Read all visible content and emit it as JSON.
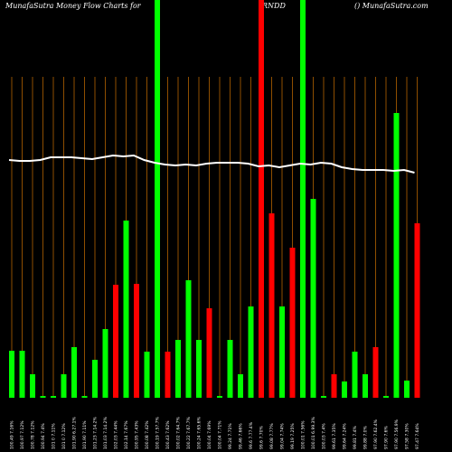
{
  "chart_data": {
    "type": "bar",
    "title": "MunafaSutra  Money Flow  Charts for",
    "symbol": "RNDD",
    "site": "() MunafaSutra.com",
    "categories": [
      "100.49 7.16%",
      "100.97 7.12%",
      "100.78 7.12%",
      "100.94 7.4%",
      "101 0 7.11%",
      "101 0 7.12%",
      "101.90 6.27.1%",
      "101.90 7.11%",
      "101.23 7.14.2%",
      "101.03 7.14.2%",
      "102.03 7.44%",
      "102.14 7.67%",
      "100.95 7.43%",
      "100.08 7.42%",
      "100.19 7.57.7%",
      "100.43 7.62%",
      "100.02 7.64.7%",
      "100.22 7.67.7%",
      "100.24 7.65.6%",
      "100.04 7.69%",
      "100.04 7.71%",
      "99.24 7.71%",
      "99.46 7.66%",
      "99.6 7.77.4%",
      "99.6 7.70%",
      "99.08 7.77%",
      "99.04 7.74%",
      "99.19 7.25%",
      "100.01 7.56%",
      "100.01 6.99.3%",
      "100.03 7.4%",
      "99.61 7.35%",
      "99.64 7.24%",
      "99.81 7.4%",
      "99.88 7.0%",
      "97.90 7.62.4%",
      "97.90 7.6%",
      "97.90 7.56.9%",
      "97.58 7.30%",
      "97.47 7.64%"
    ],
    "values": [
      52,
      52,
      26,
      2,
      2,
      26,
      56,
      2,
      42,
      76,
      125,
      196,
      126,
      51,
      440,
      51,
      64,
      130,
      64,
      99,
      2,
      64,
      26,
      101,
      440,
      204,
      101,
      166,
      440,
      220,
      2,
      26,
      18,
      51,
      26,
      56,
      2,
      315,
      19,
      193
    ],
    "colors": [
      "g",
      "g",
      "g",
      "g",
      "g",
      "g",
      "g",
      "g",
      "g",
      "g",
      "r",
      "g",
      "r",
      "g",
      "g",
      "r",
      "g",
      "g",
      "g",
      "r",
      "g",
      "g",
      "g",
      "g",
      "r",
      "r",
      "g",
      "r",
      "g",
      "g",
      "g",
      "r",
      "g",
      "g",
      "g",
      "r",
      "g",
      "g",
      "g",
      "r"
    ],
    "up_color": "#00ff00",
    "down_color": "#ff0000",
    "grid_color": "#b36200",
    "line_color": "#ffffff",
    "line": [
      263,
      262,
      262,
      263,
      266,
      266,
      266,
      265,
      264,
      266,
      268,
      267,
      268,
      263,
      260,
      258,
      257,
      258,
      257,
      259,
      260,
      260,
      260,
      259,
      256,
      257,
      255,
      257,
      259,
      258,
      260,
      259,
      255,
      253,
      252,
      252,
      252,
      251,
      252,
      249
    ],
    "ylim": [
      0,
      440
    ]
  }
}
